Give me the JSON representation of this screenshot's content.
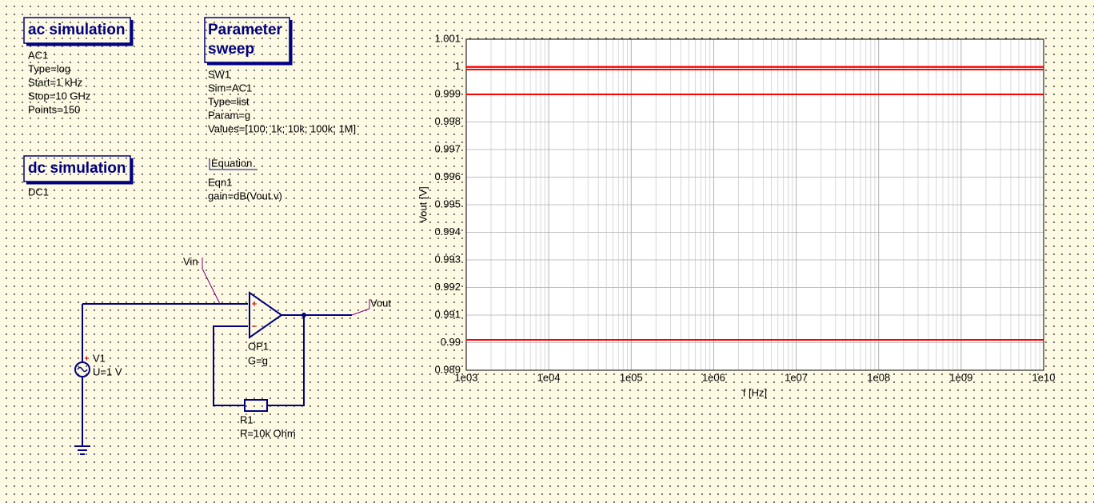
{
  "simulations": [
    {
      "title": "ac simulation",
      "lines": [
        "AC1",
        "Type=log",
        "Start=1 kHz",
        "Stop=10 GHz",
        "Points=150"
      ]
    },
    {
      "title": "dc simulation",
      "lines": [
        "DC1"
      ]
    }
  ],
  "sweep": {
    "title": [
      "Parameter",
      "sweep"
    ],
    "lines": [
      "SW1",
      "Sim=AC1",
      "Type=list",
      "Param=g",
      "Values=[100; 1k; 10k; 100k; 1M]"
    ]
  },
  "equation": {
    "title": "Equation",
    "lines": [
      "Eqn1",
      "gain=dB(Vout.v)"
    ]
  },
  "components": {
    "vin": "Vin",
    "vout": "Vout",
    "v1": [
      "V1",
      "U=1 V"
    ],
    "op1": [
      "OP1",
      "G=g"
    ],
    "r1": [
      "R1",
      "R=10k Ohm"
    ]
  },
  "chart_data": {
    "type": "line",
    "xlabel": "f [Hz]",
    "ylabel": "Vout [V]",
    "xscale": "log",
    "grid": true,
    "x": [
      1000,
      10000000000
    ],
    "series": [
      {
        "color": "#ff0000",
        "values": [
          0.9901,
          0.9901
        ]
      },
      {
        "color": "#ff0000",
        "values": [
          0.999,
          0.999
        ]
      },
      {
        "color": "#ff0000",
        "values": [
          0.9999,
          0.9999
        ]
      },
      {
        "color": "#ff0000",
        "values": [
          0.99999,
          0.99999
        ]
      },
      {
        "color": "#ff0000",
        "values": [
          0.999999,
          0.999999
        ]
      }
    ],
    "xlim": [
      1000,
      10000000000
    ],
    "xticks": [
      {
        "value": 1000,
        "label": "1e03"
      },
      {
        "value": 10000,
        "label": "1e04"
      },
      {
        "value": 100000,
        "label": "1e05"
      },
      {
        "value": 1000000,
        "label": "1e06"
      },
      {
        "value": 10000000,
        "label": "1e07"
      },
      {
        "value": 100000000,
        "label": "1e08"
      },
      {
        "value": 1000000000,
        "label": "1e09"
      },
      {
        "value": 10000000000,
        "label": "1e10"
      }
    ],
    "ylim": [
      0.989,
      1.001
    ],
    "yticks": [
      0.989,
      0.99,
      0.991,
      0.992,
      0.993,
      0.994,
      0.995,
      0.996,
      0.997,
      0.998,
      0.999,
      1,
      1.001
    ]
  }
}
